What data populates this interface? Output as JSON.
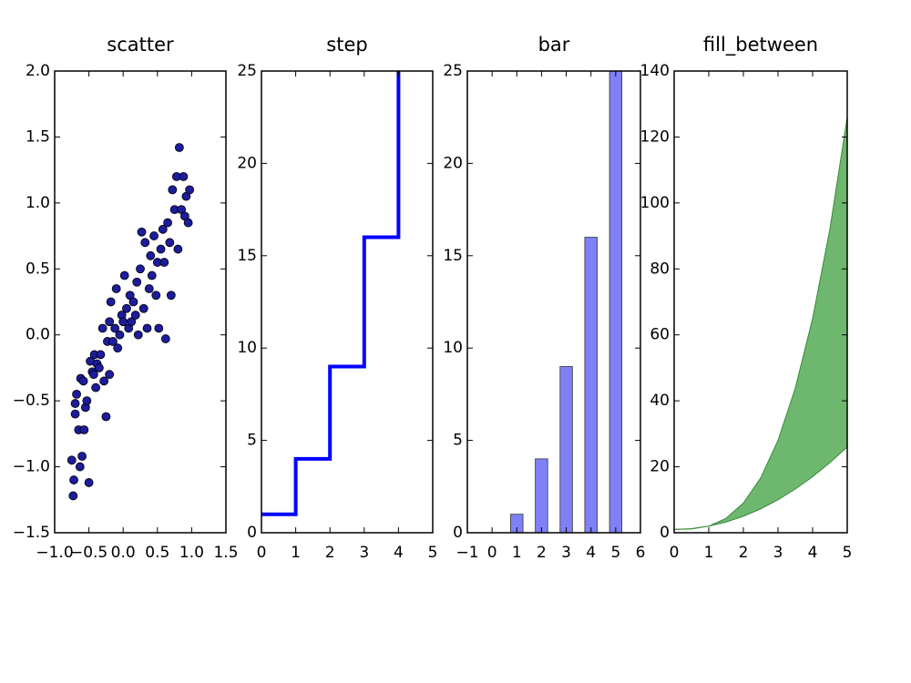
{
  "chart_data": [
    {
      "type": "scatter",
      "title": "scatter",
      "color": "#1c1c9c",
      "x": [
        -0.75,
        -0.73,
        -0.72,
        -0.7,
        -0.7,
        -0.68,
        -0.65,
        -0.63,
        -0.62,
        -0.6,
        -0.58,
        -0.57,
        -0.55,
        -0.53,
        -0.5,
        -0.48,
        -0.45,
        -0.43,
        -0.42,
        -0.4,
        -0.38,
        -0.35,
        -0.33,
        -0.3,
        -0.28,
        -0.25,
        -0.23,
        -0.2,
        -0.2,
        -0.18,
        -0.15,
        -0.12,
        -0.1,
        -0.08,
        -0.05,
        -0.02,
        0.0,
        0.02,
        0.05,
        0.08,
        0.1,
        0.12,
        0.15,
        0.18,
        0.2,
        0.22,
        0.25,
        0.27,
        0.3,
        0.32,
        0.35,
        0.38,
        0.4,
        0.42,
        0.45,
        0.48,
        0.5,
        0.52,
        0.55,
        0.58,
        0.6,
        0.62,
        0.65,
        0.68,
        0.7,
        0.72,
        0.75,
        0.78,
        0.8,
        0.82,
        0.85,
        0.88,
        0.9,
        0.92,
        0.95,
        0.97
      ],
      "values": [
        -0.95,
        -1.22,
        -1.1,
        -0.6,
        -0.52,
        -0.45,
        -0.72,
        -1.0,
        -0.33,
        -0.92,
        -0.35,
        -0.72,
        -0.55,
        -0.5,
        -1.12,
        -0.2,
        -0.28,
        -0.3,
        -0.15,
        -0.4,
        -0.22,
        -0.25,
        -0.15,
        0.05,
        -0.35,
        -0.62,
        -0.05,
        0.1,
        -0.3,
        0.25,
        -0.05,
        0.05,
        0.35,
        -0.1,
        0.0,
        0.15,
        0.1,
        0.45,
        0.2,
        0.05,
        0.3,
        0.1,
        0.25,
        0.15,
        0.4,
        0.0,
        0.5,
        0.78,
        0.2,
        0.7,
        0.05,
        0.35,
        0.6,
        0.45,
        0.75,
        0.3,
        0.55,
        0.05,
        0.65,
        0.8,
        0.55,
        -0.03,
        0.85,
        0.7,
        0.3,
        1.1,
        0.95,
        1.2,
        0.65,
        1.42,
        0.95,
        1.2,
        0.9,
        1.05,
        0.85,
        1.1
      ],
      "xlim": [
        -1.0,
        1.5
      ],
      "xticks": [
        {
          "value": -1.0,
          "label": "−1.0"
        },
        {
          "value": -0.5,
          "label": "−0.5"
        },
        {
          "value": 0.0,
          "label": "0.0"
        },
        {
          "value": 0.5,
          "label": "0.5"
        },
        {
          "value": 1.0,
          "label": "1.0"
        },
        {
          "value": 1.5,
          "label": "1.5"
        }
      ],
      "ylim": [
        -1.5,
        2.0
      ],
      "yticks": [
        {
          "value": -1.5,
          "label": "−1.5"
        },
        {
          "value": -1.0,
          "label": "−1.0"
        },
        {
          "value": -0.5,
          "label": "−0.5"
        },
        {
          "value": 0.0,
          "label": "0.0"
        },
        {
          "value": 0.5,
          "label": "0.5"
        },
        {
          "value": 1.0,
          "label": "1.0"
        },
        {
          "value": 1.5,
          "label": "1.5"
        },
        {
          "value": 2.0,
          "label": "2.0"
        }
      ]
    },
    {
      "type": "step",
      "title": "step",
      "color": "#0000ff",
      "where": "post",
      "x": [
        0,
        1,
        2,
        3,
        4
      ],
      "values": [
        1,
        4,
        9,
        16,
        25
      ],
      "xlim": [
        0,
        5
      ],
      "xticks": [
        0,
        1,
        2,
        3,
        4,
        5
      ],
      "ylim": [
        0,
        25
      ],
      "yticks": [
        0,
        5,
        10,
        15,
        20,
        25
      ]
    },
    {
      "type": "bar",
      "title": "bar",
      "color": "#8080f8",
      "x": [
        1,
        2,
        3,
        4,
        5
      ],
      "values": [
        1,
        4,
        9,
        16,
        25
      ],
      "xlim": [
        -1,
        6
      ],
      "xticks": [
        {
          "value": -1,
          "label": "−1"
        },
        0,
        1,
        2,
        3,
        4,
        5,
        6
      ],
      "ylim": [
        0,
        25
      ],
      "yticks": [
        0,
        5,
        10,
        15,
        20,
        25
      ]
    },
    {
      "type": "fill_between",
      "title": "fill_between",
      "color": "#66b366",
      "x": [
        0,
        0.5,
        1,
        1.5,
        2,
        2.5,
        3,
        3.5,
        4,
        4.5,
        5
      ],
      "y1": [
        1,
        1.25,
        2,
        3.25,
        5,
        7.25,
        10,
        13.25,
        17,
        21.25,
        26
      ],
      "y2": [
        1,
        1.125,
        2,
        4.375,
        9,
        16.625,
        28,
        43.875,
        65,
        92.125,
        126
      ],
      "xlim": [
        0,
        5
      ],
      "xticks": [
        0,
        1,
        2,
        3,
        4,
        5
      ],
      "ylim": [
        0,
        140
      ],
      "yticks": [
        0,
        20,
        40,
        60,
        80,
        100,
        120,
        140
      ]
    }
  ]
}
